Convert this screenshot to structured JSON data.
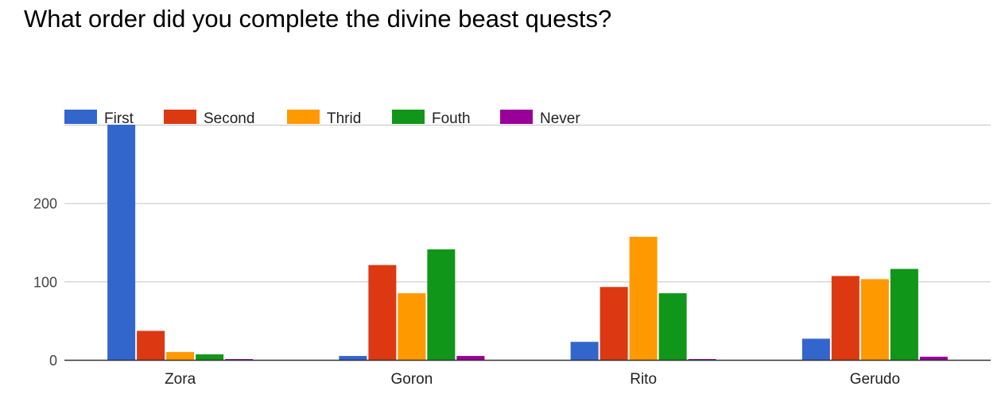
{
  "title": "What order did you complete the divine beast quests?",
  "chart_data": {
    "type": "bar",
    "categories": [
      "Zora",
      "Goron",
      "Rito",
      "Gerudo"
    ],
    "series": [
      {
        "name": "First",
        "color": "#3366cc",
        "values": [
          300,
          5,
          23,
          27
        ]
      },
      {
        "name": "Second",
        "color": "#dc3912",
        "values": [
          37,
          121,
          93,
          107
        ]
      },
      {
        "name": "Thrid",
        "color": "#ff9900",
        "values": [
          10,
          85,
          157,
          103
        ]
      },
      {
        "name": "Fouth",
        "color": "#109618",
        "values": [
          7,
          141,
          85,
          116
        ]
      },
      {
        "name": "Never",
        "color": "#990099",
        "values": [
          1,
          5,
          1,
          4
        ]
      }
    ],
    "yticks": [
      0,
      100,
      200
    ],
    "ylim": [
      0,
      300
    ],
    "grid": true,
    "legend": "top",
    "xlabel": "",
    "ylabel": ""
  }
}
